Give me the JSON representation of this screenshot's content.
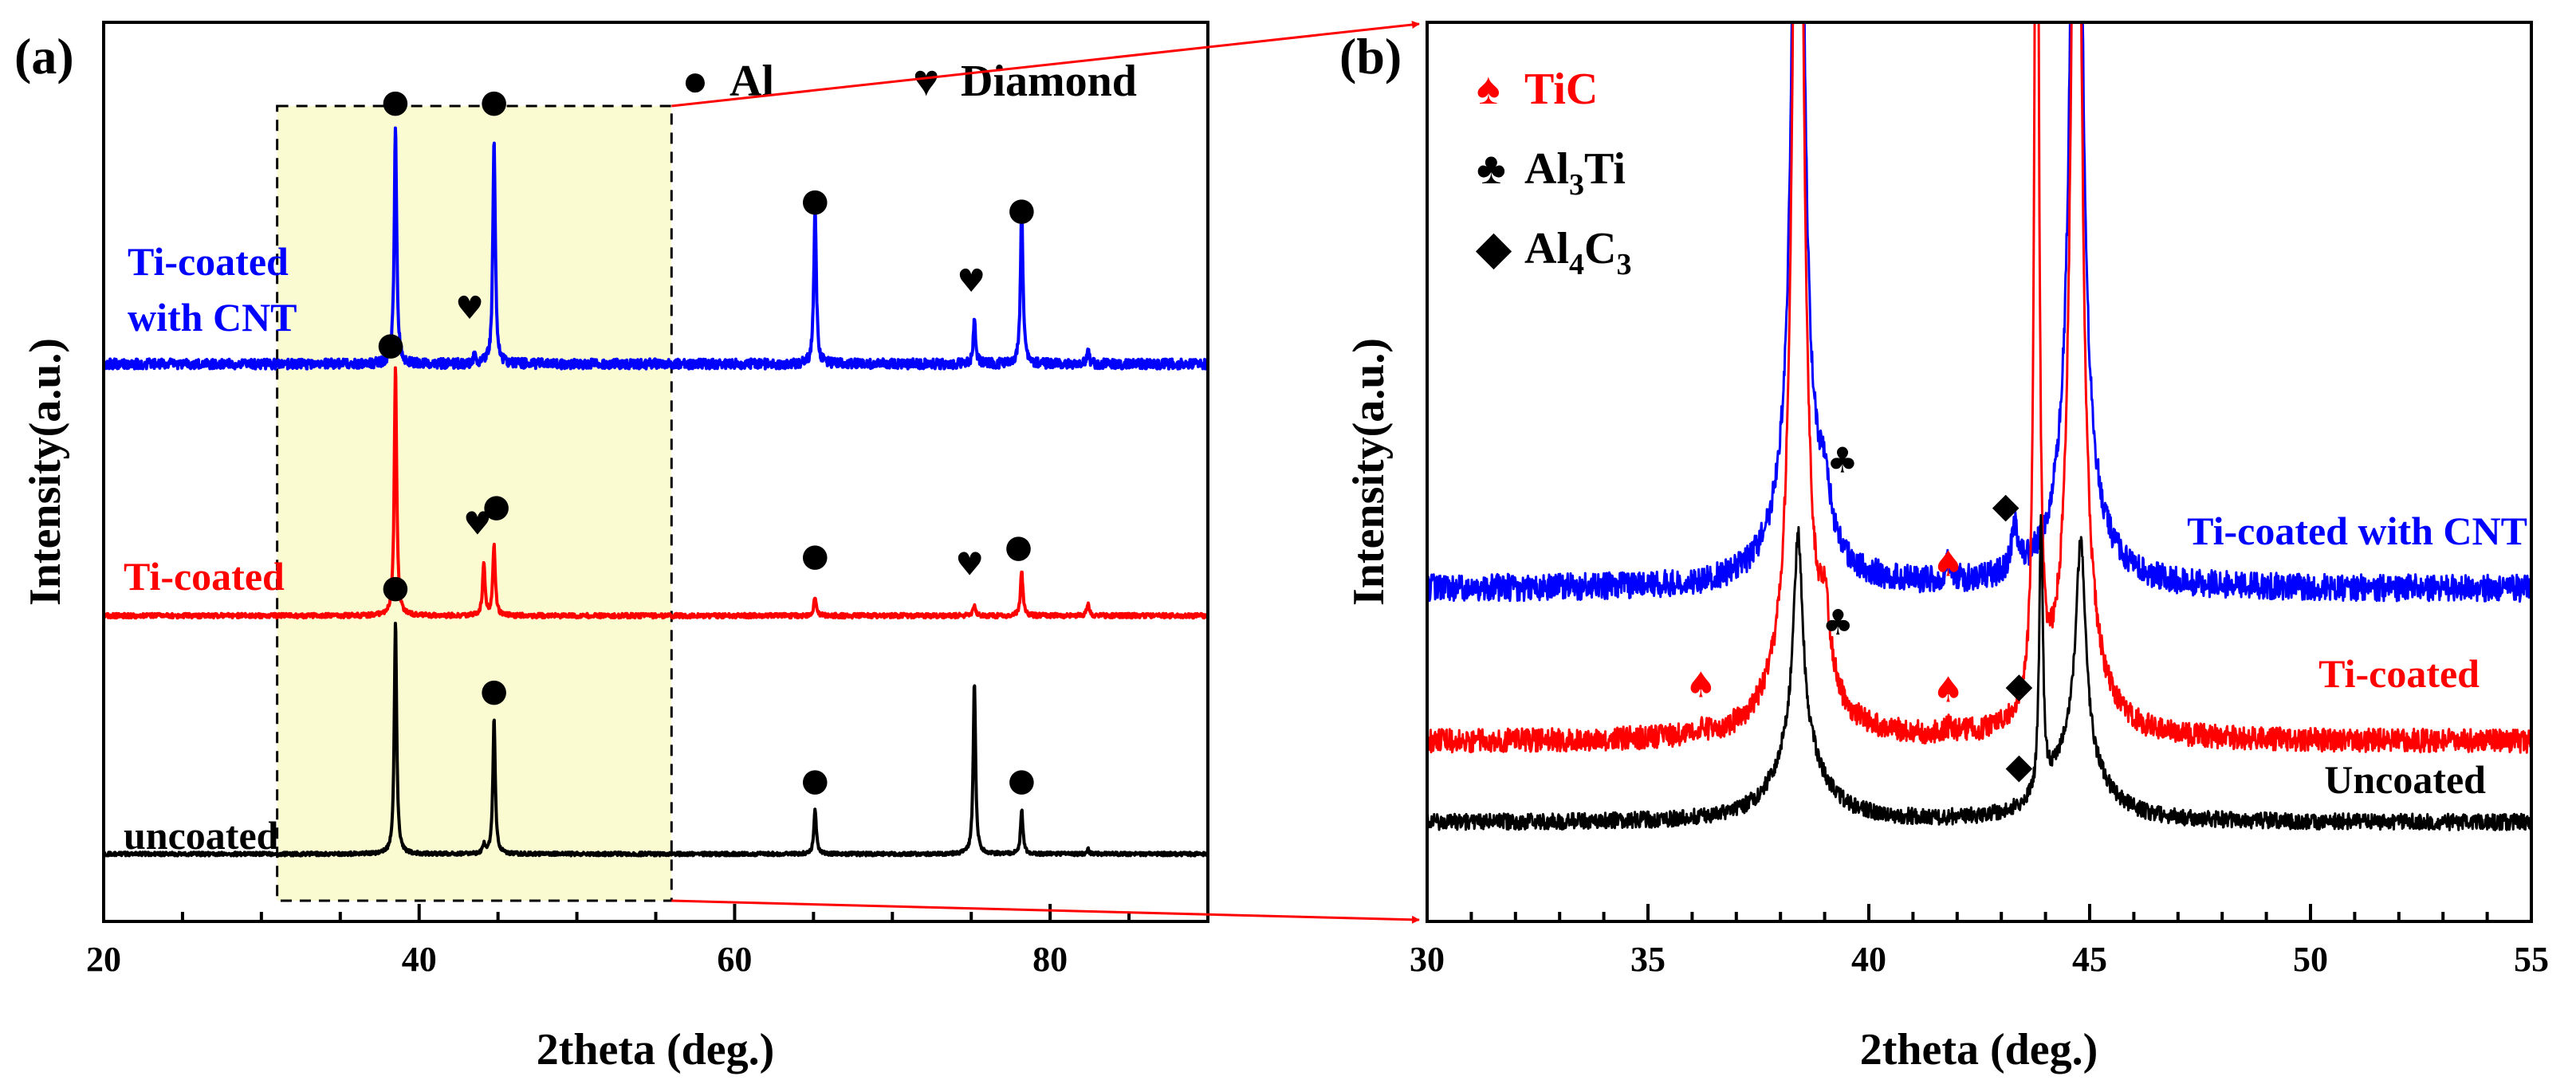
{
  "chart_data": [
    {
      "panel": "(a)",
      "type": "line",
      "title": "",
      "xlabel": "2theta (deg.)",
      "ylabel": "Intensity(a.u.)",
      "xlim": [
        20,
        90
      ],
      "xticks": [
        20,
        40,
        60,
        80
      ],
      "y_ticks_shown": false,
      "legend": [
        {
          "symbol": "●",
          "label": "Al"
        },
        {
          "symbol": "♥",
          "label": "Diamond"
        }
      ],
      "zoom_region": [
        31,
        56
      ],
      "series": [
        {
          "name": "Ti-coated with CNT",
          "label_lines": [
            "Ti-coated",
            "with CNT"
          ],
          "color": "#0000ff",
          "offset": 62,
          "noise": 0.55,
          "peaks": [
            [
              38.5,
              27
            ],
            [
              43.5,
              0.8
            ],
            [
              44.75,
              25.5
            ],
            [
              65.1,
              18
            ],
            [
              75.2,
              5
            ],
            [
              78.2,
              18
            ],
            [
              82.4,
              1.6
            ]
          ],
          "markers": [
            {
              "x": 38.5,
              "y": 91,
              "symbol": "●"
            },
            {
              "x": 43.2,
              "y": 68,
              "symbol": "♥"
            },
            {
              "x": 44.75,
              "y": 91,
              "symbol": "●"
            },
            {
              "x": 65.1,
              "y": 80,
              "symbol": "●"
            },
            {
              "x": 75.0,
              "y": 71,
              "symbol": "♥"
            },
            {
              "x": 78.2,
              "y": 79,
              "symbol": "●"
            }
          ]
        },
        {
          "name": "Ti-coated",
          "label_lines": [
            "Ti-coated"
          ],
          "color": "#ff0000",
          "offset": 34,
          "noise": 0.25,
          "peaks": [
            [
              38.5,
              28
            ],
            [
              44.1,
              6
            ],
            [
              44.75,
              8
            ],
            [
              65.1,
              2.2
            ],
            [
              75.2,
              1.2
            ],
            [
              78.2,
              5
            ],
            [
              82.4,
              1.4
            ]
          ],
          "markers": [
            {
              "x": 38.2,
              "y": 64,
              "symbol": "●"
            },
            {
              "x": 43.7,
              "y": 44,
              "symbol": "♥"
            },
            {
              "x": 44.9,
              "y": 46,
              "symbol": "●"
            },
            {
              "x": 65.1,
              "y": 40.5,
              "symbol": "●"
            },
            {
              "x": 74.9,
              "y": 39.5,
              "symbol": "♥"
            },
            {
              "x": 78.0,
              "y": 41.5,
              "symbol": "●"
            }
          ]
        },
        {
          "name": "uncoated",
          "label_lines": [
            "uncoated"
          ],
          "color": "#000000",
          "offset": 7.5,
          "noise": 0.2,
          "peaks": [
            [
              38.5,
              26
            ],
            [
              44.1,
              1
            ],
            [
              44.75,
              15
            ],
            [
              65.1,
              5
            ],
            [
              75.2,
              19
            ],
            [
              78.2,
              5
            ],
            [
              82.4,
              0.5
            ]
          ],
          "markers": [
            {
              "x": 38.5,
              "y": 37,
              "symbol": "●"
            },
            {
              "x": 44.75,
              "y": 25.5,
              "symbol": "●"
            },
            {
              "x": 65.1,
              "y": 15.5,
              "symbol": "●"
            },
            {
              "x": 78.2,
              "y": 15.5,
              "symbol": "●"
            }
          ]
        }
      ]
    },
    {
      "panel": "(b)",
      "type": "line",
      "title": "",
      "xlabel": "2theta (deg.)",
      "ylabel": "Intensity(a.u.)",
      "xlim": [
        30,
        55
      ],
      "xticks": [
        30,
        35,
        40,
        45,
        50,
        55
      ],
      "y_ticks_shown": false,
      "legend": [
        {
          "symbol": "♠",
          "label": "TiC",
          "color": "#ff0000"
        },
        {
          "symbol": "♣",
          "label": "Al3Ti",
          "base": "Al",
          "sub1": "3",
          "rest": "Ti",
          "sub2": "",
          "color": "#000000"
        },
        {
          "symbol": "◆",
          "label": "Al4C3",
          "base": "Al",
          "sub1": "4",
          "rest": "C",
          "sub2": "3",
          "color": "#000000"
        }
      ],
      "series": [
        {
          "name": "Ti-coated with CNT",
          "color": "#0000ff",
          "offset": 37,
          "noise": 1.5,
          "peaks": [
            [
              38.4,
              130,
              0.12
            ],
            [
              39.0,
              6,
              0.15
            ],
            [
              41.8,
              2,
              0.1
            ],
            [
              43.3,
              5,
              0.08
            ],
            [
              44.7,
              130,
              0.12
            ]
          ],
          "markers": [
            {
              "x": 39.4,
              "y": 51,
              "symbol": "♣"
            },
            {
              "x": 41.8,
              "y": 39.5,
              "symbol": "♠"
            },
            {
              "x": 43.1,
              "y": 46,
              "symbol": "◆"
            }
          ]
        },
        {
          "name": "Ti-coated",
          "color": "#ff0000",
          "offset": 20,
          "noise": 1.3,
          "peaks": [
            [
              36.2,
              0.6,
              0.1
            ],
            [
              38.4,
              140,
              0.12
            ],
            [
              39.0,
              8,
              0.15
            ],
            [
              41.8,
              0.6,
              0.1
            ],
            [
              43.8,
              140,
              0.05
            ],
            [
              44.7,
              130,
              0.12
            ]
          ],
          "markers": [
            {
              "x": 39.3,
              "y": 33,
              "symbol": "♣"
            },
            {
              "x": 36.2,
              "y": 26,
              "symbol": "♠"
            },
            {
              "x": 41.8,
              "y": 25.5,
              "symbol": "♠"
            },
            {
              "x": 43.4,
              "y": 26,
              "symbol": "◆"
            }
          ]
        },
        {
          "name": "Uncoated",
          "color": "#000000",
          "offset": 11,
          "noise": 0.9,
          "peaks": [
            [
              38.4,
              22,
              0.12
            ],
            [
              43.9,
              30,
              0.05
            ],
            [
              44.8,
              22,
              0.12
            ]
          ],
          "markers": [
            {
              "x": 43.4,
              "y": 17,
              "symbol": "◆"
            }
          ]
        }
      ]
    }
  ]
}
